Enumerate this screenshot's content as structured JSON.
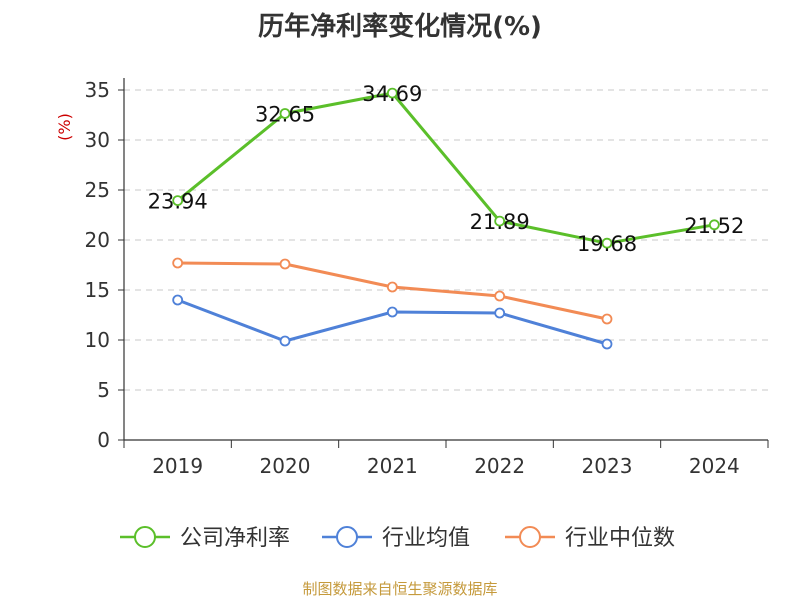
{
  "chart_data": {
    "type": "line",
    "title": "历年净利率变化情况(%)",
    "ylabel": "(%)",
    "categories": [
      "2019",
      "2020",
      "2021",
      "2022",
      "2023",
      "2024"
    ],
    "ylim": [
      0,
      35
    ],
    "yticks": [
      "0",
      "5",
      "10",
      "15",
      "20",
      "25",
      "30",
      "35"
    ],
    "grid": true,
    "legend_position": "bottom",
    "series": [
      {
        "name": "公司净利率",
        "color": "#5bbf2a",
        "values": [
          23.94,
          32.65,
          34.69,
          21.89,
          19.68,
          21.52
        ],
        "labels": [
          "23.94",
          "32.65",
          "34.69",
          "21.89",
          "19.68",
          "21.52"
        ]
      },
      {
        "name": "行业均值",
        "color": "#4f81d8",
        "values": [
          14.0,
          9.9,
          12.8,
          12.7,
          9.6,
          null
        ]
      },
      {
        "name": "行业中位数",
        "color": "#f28b55",
        "values": [
          17.7,
          17.6,
          15.3,
          14.4,
          12.1,
          null
        ]
      }
    ]
  },
  "source": "制图数据来自恒生聚源数据库"
}
